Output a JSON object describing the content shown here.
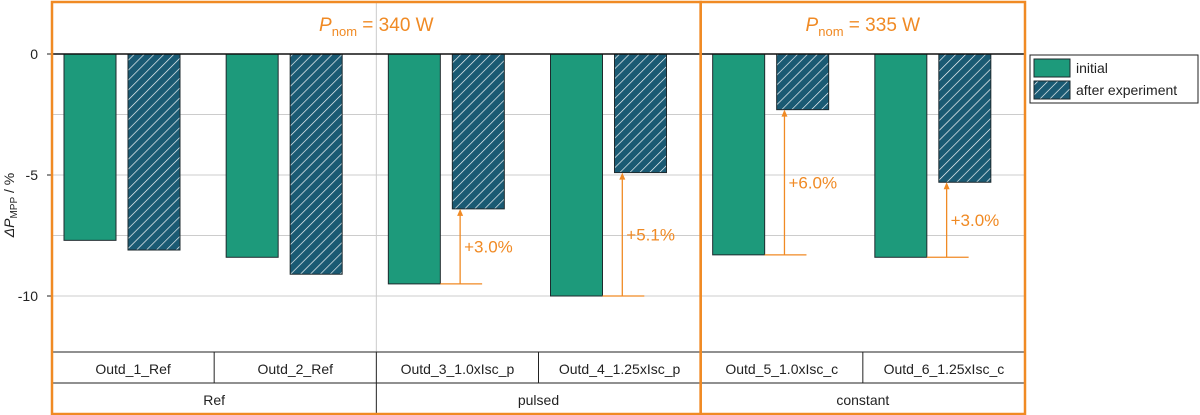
{
  "chart_data": {
    "type": "bar",
    "ylabel_symbol": "ΔP",
    "ylabel_subscript": "MPP",
    "ylabel_unit": " / %",
    "ylim": [
      -12.5,
      2.3
    ],
    "yticks": [
      0,
      -5,
      -10
    ],
    "ytick_labels": [
      "0",
      "-5",
      "-10"
    ],
    "grid": true,
    "legend_position": "right",
    "series": [
      {
        "name": "initial",
        "pattern": "solid",
        "values": [
          -7.7,
          -8.4,
          -9.5,
          -10.0,
          -8.3,
          -8.4
        ]
      },
      {
        "name": "after experiment",
        "pattern": "hatched",
        "values": [
          -8.1,
          -9.1,
          -6.4,
          -4.9,
          -2.3,
          -5.3
        ]
      }
    ],
    "categories": [
      "Outd_1_Ref",
      "Outd_2_Ref",
      "Outd_3_1.0xIsc_p",
      "Outd_4_1.25xIsc_p",
      "Outd_5_1.0xIsc_c",
      "Outd_6_1.25xIsc_c"
    ],
    "groups": [
      {
        "label": "Ref",
        "categories": [
          0,
          1
        ]
      },
      {
        "label": "pulsed",
        "categories": [
          2,
          3
        ]
      },
      {
        "label": "constant",
        "categories": [
          4,
          5
        ]
      }
    ],
    "panels": [
      {
        "symbol": "P",
        "subscript": "nom",
        "value_text": " = 340 W",
        "categories": [
          0,
          1,
          2,
          3
        ]
      },
      {
        "symbol": "P",
        "subscript": "nom",
        "value_text": " = 335 W",
        "categories": [
          4,
          5
        ]
      }
    ],
    "annotations": [
      {
        "category": 2,
        "text": "+3.0%"
      },
      {
        "category": 3,
        "text": "+5.1%"
      },
      {
        "category": 4,
        "text": "+6.0%"
      },
      {
        "category": 5,
        "text": "+3.0%"
      }
    ]
  },
  "colors": {
    "initial": "#1d9a7b",
    "after": "#1a5a73",
    "accent": "#f08a24",
    "grid": "#cccccc"
  }
}
